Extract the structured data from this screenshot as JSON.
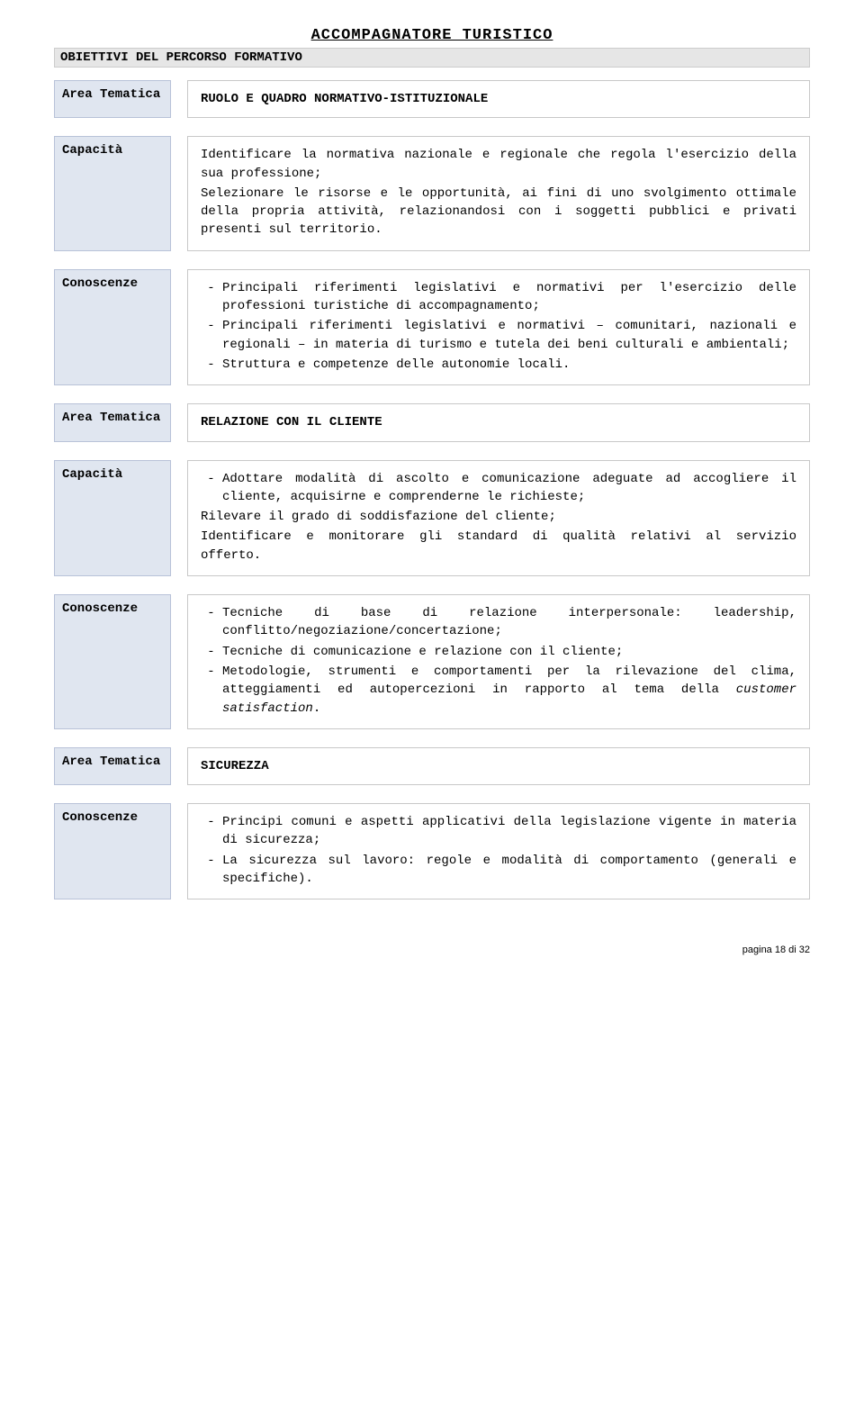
{
  "title": "ACCOMPAGNATORE TURISTICO",
  "section_header": "OBIETTIVI DEL PERCORSO FORMATIVO",
  "labels": {
    "area_tematica": "Area Tematica",
    "capacita": "Capacità",
    "conoscenze": "Conoscenze"
  },
  "block1": {
    "area_tematica": "RUOLO E QUADRO NORMATIVO-ISTITUZIONALE",
    "capacita_p1": "Identificare la normativa nazionale e regionale che regola l'esercizio della sua professione;",
    "capacita_p2": "Selezionare le risorse e le opportunità, ai fini di uno svolgimento ottimale della propria attività, relazionandosi con i soggetti pubblici e privati presenti sul territorio.",
    "conoscenze_li1": "Principali riferimenti legislativi e normativi per l'esercizio delle professioni turistiche di accompagnamento;",
    "conoscenze_li2": "Principali riferimenti legislativi e normativi – comunitari, nazionali e regionali – in materia di turismo e tutela dei beni culturali e ambientali;",
    "conoscenze_li3": "Struttura e competenze delle autonomie locali."
  },
  "block2": {
    "area_tematica": "RELAZIONE CON IL CLIENTE",
    "capacita_li1": "Adottare modalità di ascolto e comunicazione adeguate ad accogliere il cliente, acquisirne e comprenderne le richieste;",
    "capacita_p2": "Rilevare il grado di soddisfazione del cliente;",
    "capacita_p3": "Identificare e monitorare gli standard di qualità relativi al servizio offerto.",
    "conoscenze_li1": "Tecniche di base di relazione interpersonale: leadership, conflitto/negoziazione/concertazione;",
    "conoscenze_li2": "Tecniche di comunicazione e relazione con il cliente;",
    "conoscenze_li3a": "Metodologie, strumenti e comportamenti per la rilevazione del clima, atteggiamenti ed autopercezioni in rapporto al tema della ",
    "conoscenze_li3b": "customer satisfaction",
    "conoscenze_li3c": "."
  },
  "block3": {
    "area_tematica": "SICUREZZA",
    "conoscenze_li1": "Principi comuni e aspetti applicativi della legislazione vigente in materia di sicurezza;",
    "conoscenze_li2": "La sicurezza sul lavoro: regole e modalità di comportamento (generali e specifiche)."
  },
  "footer": "pagina 18 di 32"
}
